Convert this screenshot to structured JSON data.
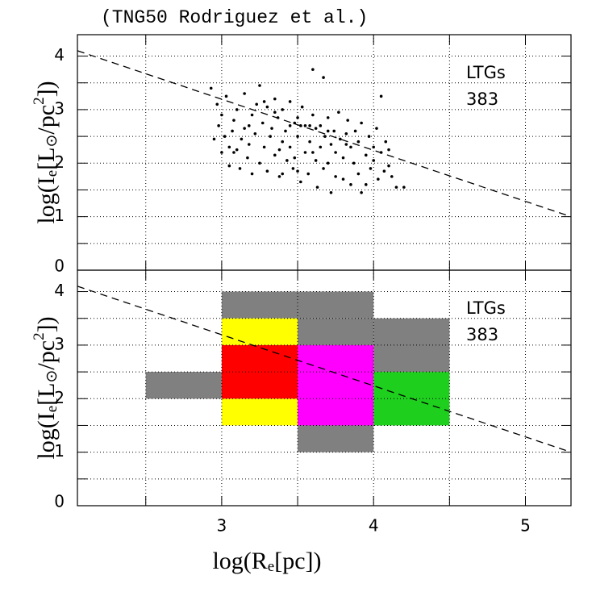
{
  "chart_data": [
    {
      "type": "scatter",
      "title": "(TNG50 Rodriguez et al.)",
      "annotations": [
        "LTGs",
        "383"
      ],
      "ylabel": [
        "log(I",
        "e",
        "[L",
        "⊙",
        "/pc",
        "2",
        "])"
      ],
      "xlim": [
        2.05,
        5.3
      ],
      "xgrid": [
        2.5,
        3,
        3.5,
        4,
        4.5,
        5
      ],
      "ylim": [
        0,
        4.4
      ],
      "yticks": [
        0,
        1,
        2,
        3,
        4
      ],
      "ygrid": [
        0.5,
        1,
        1.5,
        2,
        2.5,
        3,
        3.5,
        4
      ],
      "color": "#000000",
      "line": {
        "x": [
          2.05,
          5.3
        ],
        "y": [
          4.1,
          1.0
        ]
      },
      "x": [
        2.93,
        2.95,
        2.97,
        2.98,
        3.0,
        3.0,
        3.02,
        3.03,
        3.05,
        3.05,
        3.07,
        3.08,
        3.1,
        3.1,
        3.12,
        3.13,
        3.15,
        3.15,
        3.17,
        3.18,
        3.2,
        3.2,
        3.22,
        3.23,
        3.25,
        3.25,
        3.27,
        3.28,
        3.3,
        3.3,
        3.32,
        3.33,
        3.35,
        3.35,
        3.37,
        3.38,
        3.4,
        3.4,
        3.42,
        3.43,
        3.45,
        3.45,
        3.47,
        3.48,
        3.5,
        3.5,
        3.52,
        3.53,
        3.55,
        3.55,
        3.57,
        3.58,
        3.6,
        3.6,
        3.62,
        3.62,
        3.63,
        3.65,
        3.65,
        3.67,
        3.67,
        3.68,
        3.7,
        3.7,
        3.72,
        3.72,
        3.74,
        3.75,
        3.75,
        3.77,
        3.78,
        3.8,
        3.8,
        3.82,
        3.83,
        3.85,
        3.85,
        3.87,
        3.88,
        3.9,
        3.9,
        3.92,
        3.92,
        3.95,
        3.95,
        3.97,
        3.98,
        4.0,
        4.0,
        4.02,
        4.03,
        4.05,
        4.05,
        4.07,
        4.08,
        4.1,
        4.1,
        4.12,
        4.15,
        4.2,
        3.35,
        3.28,
        3.45,
        3.52,
        3.58,
        3.38,
        3.18,
        3.08,
        3.6,
        3.7,
        3.82,
        3.4,
        3.5,
        3.48
      ],
      "y": [
        3.4,
        2.45,
        3.1,
        2.7,
        2.2,
        2.9,
        2.5,
        3.25,
        2.3,
        1.95,
        2.6,
        2.8,
        3.0,
        2.25,
        1.9,
        2.45,
        2.65,
        3.3,
        2.1,
        2.35,
        2.9,
        1.8,
        2.55,
        3.1,
        3.45,
        2.0,
        2.75,
        2.3,
        3.05,
        1.85,
        2.5,
        2.65,
        2.15,
        3.2,
        2.85,
        1.75,
        2.4,
        3.0,
        2.6,
        2.05,
        3.15,
        2.3,
        1.9,
        2.75,
        2.5,
        2.85,
        1.65,
        3.05,
        2.2,
        2.7,
        1.8,
        2.4,
        3.75,
        2.9,
        2.05,
        2.65,
        1.55,
        2.3,
        2.7,
        3.6,
        1.9,
        2.5,
        2.0,
        2.85,
        1.45,
        2.35,
        2.6,
        1.75,
        2.2,
        2.95,
        2.45,
        1.7,
        2.1,
        2.55,
        2.8,
        1.6,
        2.3,
        2.0,
        2.6,
        1.8,
        2.4,
        1.45,
        2.75,
        2.15,
        1.6,
        2.5,
        1.9,
        2.3,
        2.05,
        2.65,
        1.7,
        2.2,
        3.25,
        1.85,
        2.4,
        1.95,
        2.25,
        1.75,
        1.55,
        1.55,
        2.95,
        3.15,
        2.7,
        2.7,
        2.7,
        2.25,
        2.7,
        2.2,
        2.2,
        2.6,
        2.35,
        1.8,
        1.85,
        2.1
      ]
    },
    {
      "type": "cells",
      "annotations": [
        "LTGs",
        "383"
      ],
      "ylabel": [
        "log(I",
        "e",
        "[L",
        "⊙",
        "/pc",
        "2",
        "])"
      ],
      "xlabel": [
        "log(R",
        "e",
        "[pc])"
      ],
      "xlim": [
        2.05,
        5.3
      ],
      "xticks": [
        3,
        4,
        5
      ],
      "xgrid": [
        2.5,
        3,
        3.5,
        4,
        4.5,
        5
      ],
      "ylim": [
        0,
        4.4
      ],
      "yticks": [
        0,
        1,
        2,
        3,
        4
      ],
      "ygrid": [
        0.5,
        1,
        1.5,
        2,
        2.5,
        3,
        3.5,
        4
      ],
      "line": {
        "x": [
          2.05,
          5.3
        ],
        "y": [
          4.1,
          1.0
        ]
      },
      "cells": [
        {
          "x": [
            2.5,
            3
          ],
          "y": [
            2,
            2.5
          ],
          "color": "#808080"
        },
        {
          "x": [
            3,
            4
          ],
          "y": [
            3.5,
            4
          ],
          "color": "#808080"
        },
        {
          "x": [
            3.5,
            4
          ],
          "y": [
            3,
            3.5
          ],
          "color": "#808080"
        },
        {
          "x": [
            4,
            4.5
          ],
          "y": [
            2.5,
            3.5
          ],
          "color": "#808080"
        },
        {
          "x": [
            3.5,
            4
          ],
          "y": [
            1,
            1.5
          ],
          "color": "#808080"
        },
        {
          "x": [
            3,
            3.5
          ],
          "y": [
            3,
            3.5
          ],
          "color": "#ffff00"
        },
        {
          "x": [
            3,
            3.5
          ],
          "y": [
            1.5,
            2
          ],
          "color": "#ffff00"
        },
        {
          "x": [
            3,
            3.5
          ],
          "y": [
            2,
            3
          ],
          "color": "#ff0000"
        },
        {
          "x": [
            3.5,
            4
          ],
          "y": [
            1.5,
            3
          ],
          "color": "#ff00ff"
        },
        {
          "x": [
            4,
            4.5
          ],
          "y": [
            1.5,
            2.5
          ],
          "color": "#1ecf1e"
        }
      ]
    }
  ]
}
